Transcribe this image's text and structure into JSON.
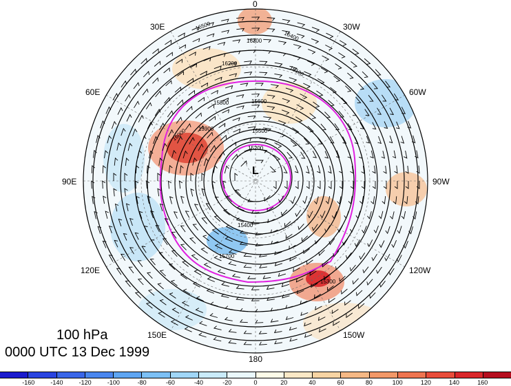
{
  "title": {
    "level": "100 hPa",
    "time": "0000 UTC 13 Dec 1999"
  },
  "longitude_labels": {
    "lon_0": "0",
    "lon_30w": "30W",
    "lon_60w": "60W",
    "lon_90w": "90W",
    "lon_120w": "120W",
    "lon_150w": "150W",
    "lon_180": "180",
    "lon_150e": "150E",
    "lon_120e": "120E",
    "lon_90e": "90E",
    "lon_60e": "60E",
    "lon_30e": "30E"
  },
  "contour_labels": [
    "16500",
    "16300",
    "16400",
    "16200",
    "16100",
    "16000",
    "15900",
    "15800",
    "15700",
    "15600",
    "15500",
    "15400",
    "15300",
    "15200"
  ],
  "low_marker": "L",
  "colorbar": {
    "colors": [
      "#1a1acd",
      "#2a44e0",
      "#3a66e8",
      "#4a86ee",
      "#5ea5f2",
      "#7cc0f5",
      "#a0d6f7",
      "#c9ebfa",
      "#eaf8fc",
      "#fdfbe8",
      "#fbe8c6",
      "#f8d4a3",
      "#f5b885",
      "#f29868",
      "#ee7450",
      "#e84c3a",
      "#d9262a",
      "#b50d1e"
    ],
    "tick_labels": [
      "-160",
      "-140",
      "-120",
      "-100",
      "-80",
      "-60",
      "-40",
      "-20",
      "0",
      "20",
      "40",
      "60",
      "80",
      "100",
      "120",
      "140",
      "160"
    ]
  },
  "colors": {
    "contour": "#000000",
    "highlight_contour": "#e020e0"
  }
}
